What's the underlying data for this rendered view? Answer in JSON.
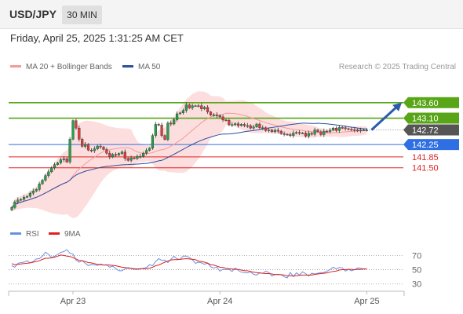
{
  "header": {
    "symbol": "USD/JPY",
    "timeframe": "30 MIN"
  },
  "datetime": "Friday, April 25, 2025 1:31:25 AM CET",
  "legend": {
    "bb": {
      "label": "MA 20 + Bollinger Bands",
      "color": "#f49a9a"
    },
    "ma50": {
      "label": "MA 50",
      "color": "#2b4f9e"
    },
    "credit": "Research © 2025 Trading Central"
  },
  "rsi_legend": {
    "rsi": {
      "label": "RSI",
      "color": "#6a8fe0"
    },
    "ma9": {
      "label": "9MA",
      "color": "#e01f1f"
    }
  },
  "chart_data": [
    {
      "type": "candlestick",
      "ylim": [
        139.62,
        144.48
      ],
      "x_tick_labels": [
        {
          "label": "Apr 23",
          "index": 20
        },
        {
          "label": "Apr 24",
          "index": 68
        },
        {
          "label": "Apr 25",
          "index": 116
        }
      ],
      "levels": [
        {
          "value": 143.6,
          "label": "143.60",
          "kind": "resistance",
          "color": "#58a618"
        },
        {
          "value": 143.1,
          "label": "143.10",
          "kind": "resistance",
          "color": "#58a618"
        },
        {
          "value": 142.72,
          "label": "142.72",
          "kind": "last-price",
          "color": "#444444"
        },
        {
          "value": 142.25,
          "label": "142.25",
          "kind": "pivot",
          "color": "#2f6fe4"
        },
        {
          "value": 141.85,
          "label": "141.85",
          "kind": "support",
          "color": "#e02020"
        },
        {
          "value": 141.5,
          "label": "141.50",
          "kind": "support",
          "color": "#e02020"
        }
      ],
      "colors": {
        "up": "#24a14a",
        "down": "#e03a3a",
        "band": "#fcdede",
        "ma20": "#f49a9a",
        "ma50": "#2b4f9e",
        "arrow": "#2b5cab"
      },
      "closes": [
        140.22,
        140.4,
        140.46,
        140.48,
        140.55,
        140.58,
        140.68,
        140.75,
        140.8,
        140.98,
        141.1,
        141.25,
        141.37,
        141.5,
        141.6,
        141.66,
        141.76,
        141.79,
        141.69,
        142.42,
        143.02,
        142.78,
        142.42,
        142.19,
        142.26,
        142.07,
        142.05,
        142.11,
        142.2,
        142.17,
        142.09,
        141.97,
        141.85,
        141.93,
        141.91,
        141.96,
        142.01,
        141.8,
        141.74,
        141.82,
        141.8,
        141.87,
        141.87,
        141.97,
        142.06,
        142.13,
        142.54,
        142.9,
        142.88,
        142.54,
        142.41,
        142.94,
        142.91,
        143.05,
        143.24,
        143.27,
        143.35,
        143.53,
        143.43,
        143.5,
        143.5,
        143.5,
        143.4,
        143.45,
        143.3,
        143.2,
        143.21,
        143.18,
        143.14,
        143.04,
        143.03,
        142.89,
        142.89,
        142.92,
        142.86,
        142.9,
        142.86,
        142.86,
        142.78,
        142.82,
        142.91,
        142.79,
        142.79,
        142.7,
        142.72,
        142.66,
        142.71,
        142.68,
        142.6,
        142.58,
        142.57,
        142.54,
        142.62,
        142.64,
        142.62,
        142.62,
        142.52,
        142.61,
        142.58,
        142.72,
        142.66,
        142.57,
        142.68,
        142.67,
        142.71,
        142.78,
        142.7,
        142.8,
        142.79,
        142.76,
        142.74,
        142.73,
        142.72,
        142.69,
        142.72,
        142.72,
        142.72
      ]
    },
    {
      "type": "line",
      "title": "RSI",
      "ylim": [
        22,
        88
      ],
      "y_ticks": [
        70,
        50,
        30
      ],
      "series": [
        {
          "name": "RSI",
          "values": [
            55.5,
            53.5,
            59.0,
            60.0,
            60.5,
            62.5,
            59.5,
            61.5,
            65.0,
            65.5,
            69.0,
            74.5,
            71.5,
            67.0,
            69.0,
            71.5,
            74.0,
            75.5,
            78.0,
            73.0,
            72.0,
            63.5,
            60.5,
            63.0,
            59.0,
            55.5,
            57.5,
            57.0,
            56.0,
            58.0,
            56.5,
            57.0,
            53.5,
            55.0,
            51.5,
            48.5,
            48.5,
            51.0,
            53.0,
            51.5,
            50.5,
            50.5,
            51.0,
            52.0,
            53.0,
            57.0,
            55.5,
            61.5,
            65.5,
            63.0,
            63.5,
            60.0,
            64.5,
            69.0,
            65.0,
            64.5,
            69.0,
            69.0,
            67.0,
            64.0,
            59.0,
            60.5,
            59.5,
            57.5,
            59.5,
            54.0,
            52.5,
            53.5,
            48.0,
            50.5,
            50.0,
            50.5,
            47.5,
            52.5,
            49.0,
            46.5,
            46.0,
            45.5,
            47.0,
            43.5,
            42.5,
            45.5,
            45.0,
            48.0,
            46.0,
            41.0,
            43.5,
            43.5,
            43.0,
            40.0,
            38.5,
            46.0,
            40.5,
            45.5,
            42.5,
            47.0,
            44.5,
            41.0,
            45.0,
            44.0,
            45.0,
            46.0,
            46.0,
            48.0,
            50.0,
            53.5,
            51.0,
            53.0,
            52.5,
            48.0,
            50.5,
            48.5,
            50.0,
            52.5,
            52.0,
            51.0,
            51.5
          ]
        },
        {
          "name": "9MA",
          "values": [
            58.5,
            57.0,
            57.5,
            58.0,
            58.5,
            59.0,
            59.5,
            60.5,
            61.5,
            62.5,
            64.5,
            66.0,
            66.0,
            66.5,
            67.5,
            69.0,
            70.5,
            70.0,
            69.0,
            68.5,
            67.0,
            65.0,
            63.0,
            62.5,
            61.5,
            60.0,
            59.5,
            58.5,
            57.5,
            57.0,
            56.5,
            56.5,
            56.5,
            56.0,
            55.5,
            54.5,
            53.5,
            53.0,
            52.0,
            52.0,
            51.5,
            51.0,
            51.5,
            51.5,
            51.5,
            52.0,
            53.5,
            55.5,
            56.5,
            58.5,
            60.5,
            62.0,
            63.5,
            64.0,
            64.0,
            64.5,
            65.0,
            65.5,
            65.0,
            64.5,
            64.0,
            62.0,
            61.5,
            60.5,
            59.0,
            57.0,
            56.5,
            55.0,
            53.5,
            53.0,
            52.0,
            51.5,
            51.0,
            50.5,
            50.5,
            49.5,
            48.5,
            48.5,
            47.5,
            46.5,
            46.0,
            45.5,
            45.0,
            44.5,
            44.5,
            44.0,
            43.0,
            43.0,
            43.0,
            42.5,
            41.5,
            41.5,
            41.0,
            41.5,
            42.0,
            42.5,
            42.5,
            42.5,
            42.5,
            43.5,
            44.0,
            44.5,
            45.0,
            45.5,
            46.5,
            47.5,
            48.0,
            49.5,
            50.0,
            50.0,
            50.5,
            50.5,
            50.0,
            50.5,
            50.5,
            51.0,
            51.0
          ]
        }
      ]
    }
  ]
}
